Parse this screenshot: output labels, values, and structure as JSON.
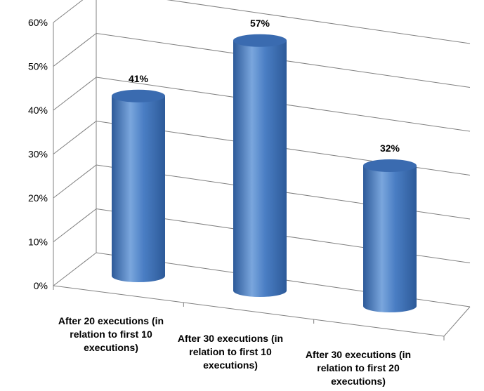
{
  "chart_data": {
    "type": "bar",
    "style": "3d-cylinder",
    "categories": [
      [
        "After 20 executions (in",
        "relation to first 10",
        "executions)"
      ],
      [
        "After 30 executions (in",
        "relation to first 10",
        "executions)"
      ],
      [
        "After 30 executions (in",
        "relation to first 20",
        "executions)"
      ]
    ],
    "values": [
      41,
      57,
      32
    ],
    "data_labels": [
      "41%",
      "57%",
      "32%"
    ],
    "y_ticks": [
      "0%",
      "10%",
      "20%",
      "30%",
      "40%",
      "50%",
      "60%"
    ],
    "ylim": [
      0,
      60
    ],
    "grid": true,
    "legend": "none",
    "colors": {
      "bar_body": "#4a7ec4",
      "bar_dark": "#2d5a99",
      "bar_light": "#7aa6dd",
      "bar_top": "#3a6bb0",
      "gridline": "#808080",
      "axis_line": "#808080"
    }
  }
}
